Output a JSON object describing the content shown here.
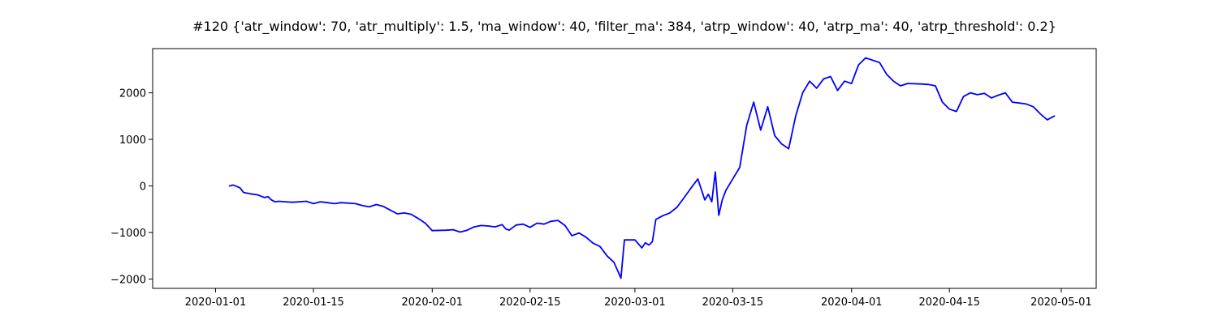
{
  "chart_data": {
    "type": "line",
    "title": "#120 {'atr_window': 70, 'atr_multiply': 1.5, 'ma_window': 40, 'filter_ma': 384, 'atrp_window': 40, 'atrp_ma': 40, 'atrp_threshold': 0.2}",
    "xlabel": "",
    "ylabel": "",
    "x_axis_type": "date",
    "xlim": [
      "2019-12-23",
      "2020-05-06"
    ],
    "ylim": [
      -2200,
      2950
    ],
    "grid": false,
    "x_ticks": [
      {
        "date": "2020-01-01",
        "label": "2020-01-01"
      },
      {
        "date": "2020-01-15",
        "label": "2020-01-15"
      },
      {
        "date": "2020-02-01",
        "label": "2020-02-01"
      },
      {
        "date": "2020-02-15",
        "label": "2020-02-15"
      },
      {
        "date": "2020-03-01",
        "label": "2020-03-01"
      },
      {
        "date": "2020-03-15",
        "label": "2020-03-15"
      },
      {
        "date": "2020-04-01",
        "label": "2020-04-01"
      },
      {
        "date": "2020-04-15",
        "label": "2020-04-15"
      },
      {
        "date": "2020-05-01",
        "label": "2020-05-01"
      }
    ],
    "y_ticks": [
      {
        "value": 2000,
        "label": "2000"
      },
      {
        "value": 1000,
        "label": "1000"
      },
      {
        "value": 0,
        "label": "0"
      },
      {
        "value": -1000,
        "label": "−1000"
      },
      {
        "value": -2000,
        "label": "−2000"
      }
    ],
    "series": [
      {
        "color": "#0000ff",
        "points": [
          [
            "2020-01-03",
            0
          ],
          [
            "2020-01-03 12:00",
            20
          ],
          [
            "2020-01-04",
            -10
          ],
          [
            "2020-01-04 12:00",
            -40
          ],
          [
            "2020-01-05",
            -140
          ],
          [
            "2020-01-06",
            -170
          ],
          [
            "2020-01-07",
            -190
          ],
          [
            "2020-01-07 12:00",
            -220
          ],
          [
            "2020-01-08",
            -250
          ],
          [
            "2020-01-08 12:00",
            -230
          ],
          [
            "2020-01-09",
            -300
          ],
          [
            "2020-01-09 12:00",
            -340
          ],
          [
            "2020-01-10",
            -330
          ],
          [
            "2020-01-11",
            -340
          ],
          [
            "2020-01-12",
            -350
          ],
          [
            "2020-01-14",
            -330
          ],
          [
            "2020-01-15",
            -380
          ],
          [
            "2020-01-16",
            -340
          ],
          [
            "2020-01-17",
            -360
          ],
          [
            "2020-01-18",
            -380
          ],
          [
            "2020-01-19",
            -360
          ],
          [
            "2020-01-21",
            -380
          ],
          [
            "2020-01-22",
            -420
          ],
          [
            "2020-01-23",
            -450
          ],
          [
            "2020-01-24",
            -400
          ],
          [
            "2020-01-25",
            -440
          ],
          [
            "2020-01-26",
            -520
          ],
          [
            "2020-01-27",
            -600
          ],
          [
            "2020-01-28",
            -580
          ],
          [
            "2020-01-29",
            -610
          ],
          [
            "2020-01-30",
            -700
          ],
          [
            "2020-01-31",
            -800
          ],
          [
            "2020-02-01",
            -960
          ],
          [
            "2020-02-03",
            -950
          ],
          [
            "2020-02-04",
            -940
          ],
          [
            "2020-02-05",
            -990
          ],
          [
            "2020-02-06",
            -950
          ],
          [
            "2020-02-07",
            -880
          ],
          [
            "2020-02-08",
            -850
          ],
          [
            "2020-02-09",
            -860
          ],
          [
            "2020-02-10",
            -880
          ],
          [
            "2020-02-11",
            -830
          ],
          [
            "2020-02-11 12:00",
            -920
          ],
          [
            "2020-02-12",
            -950
          ],
          [
            "2020-02-13",
            -840
          ],
          [
            "2020-02-14",
            -820
          ],
          [
            "2020-02-15",
            -890
          ],
          [
            "2020-02-16",
            -800
          ],
          [
            "2020-02-17",
            -820
          ],
          [
            "2020-02-18",
            -760
          ],
          [
            "2020-02-19",
            -740
          ],
          [
            "2020-02-20",
            -850
          ],
          [
            "2020-02-21",
            -1070
          ],
          [
            "2020-02-22",
            -1010
          ],
          [
            "2020-02-23",
            -1100
          ],
          [
            "2020-02-24",
            -1230
          ],
          [
            "2020-02-25",
            -1300
          ],
          [
            "2020-02-26",
            -1500
          ],
          [
            "2020-02-27",
            -1640
          ],
          [
            "2020-02-28",
            -1980
          ],
          [
            "2020-02-28 12:00",
            -1160
          ],
          [
            "2020-02-29",
            -1160
          ],
          [
            "2020-03-01",
            -1160
          ],
          [
            "2020-03-02",
            -1330
          ],
          [
            "2020-03-02 12:00",
            -1220
          ],
          [
            "2020-03-03",
            -1270
          ],
          [
            "2020-03-03 12:00",
            -1200
          ],
          [
            "2020-03-04",
            -720
          ],
          [
            "2020-03-05",
            -640
          ],
          [
            "2020-03-06",
            -580
          ],
          [
            "2020-03-07",
            -460
          ],
          [
            "2020-03-08",
            -260
          ],
          [
            "2020-03-09",
            -50
          ],
          [
            "2020-03-10",
            150
          ],
          [
            "2020-03-11",
            -300
          ],
          [
            "2020-03-11 12:00",
            -180
          ],
          [
            "2020-03-12",
            -340
          ],
          [
            "2020-03-12 12:00",
            300
          ],
          [
            "2020-03-13",
            -630
          ],
          [
            "2020-03-13 12:00",
            -300
          ],
          [
            "2020-03-14",
            -100
          ],
          [
            "2020-03-15",
            150
          ],
          [
            "2020-03-16",
            400
          ],
          [
            "2020-03-16 12:00",
            850
          ],
          [
            "2020-03-17",
            1300
          ],
          [
            "2020-03-18",
            1800
          ],
          [
            "2020-03-18 12:00",
            1500
          ],
          [
            "2020-03-19",
            1200
          ],
          [
            "2020-03-20",
            1700
          ],
          [
            "2020-03-21",
            1080
          ],
          [
            "2020-03-22",
            900
          ],
          [
            "2020-03-23",
            800
          ],
          [
            "2020-03-24",
            1500
          ],
          [
            "2020-03-25",
            2000
          ],
          [
            "2020-03-26",
            2250
          ],
          [
            "2020-03-27",
            2100
          ],
          [
            "2020-03-28",
            2300
          ],
          [
            "2020-03-29",
            2350
          ],
          [
            "2020-03-30",
            2050
          ],
          [
            "2020-03-31",
            2250
          ],
          [
            "2020-04-01",
            2200
          ],
          [
            "2020-04-02",
            2600
          ],
          [
            "2020-04-03",
            2750
          ],
          [
            "2020-04-05",
            2650
          ],
          [
            "2020-04-06",
            2400
          ],
          [
            "2020-04-07",
            2250
          ],
          [
            "2020-04-08",
            2150
          ],
          [
            "2020-04-09",
            2200
          ],
          [
            "2020-04-11",
            2190
          ],
          [
            "2020-04-12",
            2180
          ],
          [
            "2020-04-13",
            2150
          ],
          [
            "2020-04-14",
            1800
          ],
          [
            "2020-04-15",
            1650
          ],
          [
            "2020-04-16",
            1600
          ],
          [
            "2020-04-17",
            1920
          ],
          [
            "2020-04-18",
            2000
          ],
          [
            "2020-04-19",
            1960
          ],
          [
            "2020-04-20",
            1990
          ],
          [
            "2020-04-21",
            1890
          ],
          [
            "2020-04-22",
            1950
          ],
          [
            "2020-04-23",
            2000
          ],
          [
            "2020-04-24",
            1800
          ],
          [
            "2020-04-25",
            1780
          ],
          [
            "2020-04-26",
            1760
          ],
          [
            "2020-04-27",
            1700
          ],
          [
            "2020-04-28",
            1550
          ],
          [
            "2020-04-29",
            1420
          ],
          [
            "2020-04-30",
            1500
          ]
        ]
      }
    ]
  }
}
